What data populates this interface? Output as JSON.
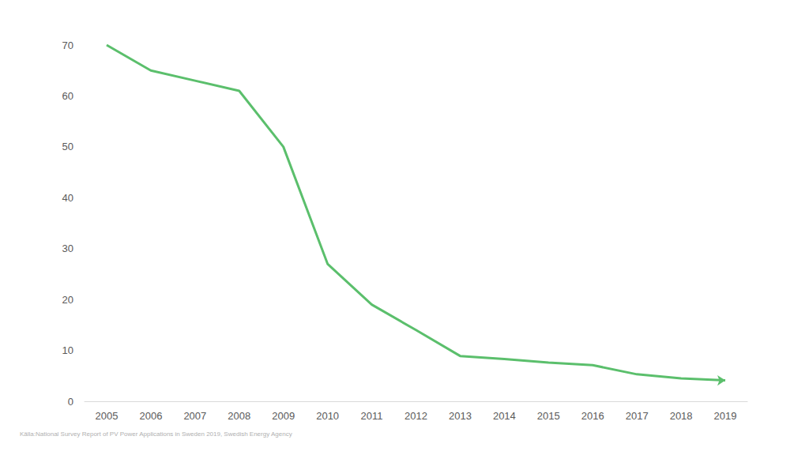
{
  "chart_data": {
    "type": "line",
    "categories": [
      "2005",
      "2006",
      "2007",
      "2008",
      "2009",
      "2010",
      "2011",
      "2012",
      "2013",
      "2014",
      "2015",
      "2016",
      "2017",
      "2018",
      "2019"
    ],
    "values": [
      70,
      65,
      63,
      61,
      50,
      27,
      19,
      14,
      8.9,
      8.3,
      7.6,
      7.1,
      5.3,
      4.5,
      4.1
    ],
    "color": "#5bbf6c",
    "marker": "arrow",
    "ylim": [
      0,
      70
    ],
    "yticks": [
      0,
      10,
      20,
      30,
      40,
      50,
      60,
      70
    ],
    "grid": false,
    "source": "Källa:National Survey Report of PV Power Applications in Sweden 2019, Swedish Energy Agency"
  }
}
